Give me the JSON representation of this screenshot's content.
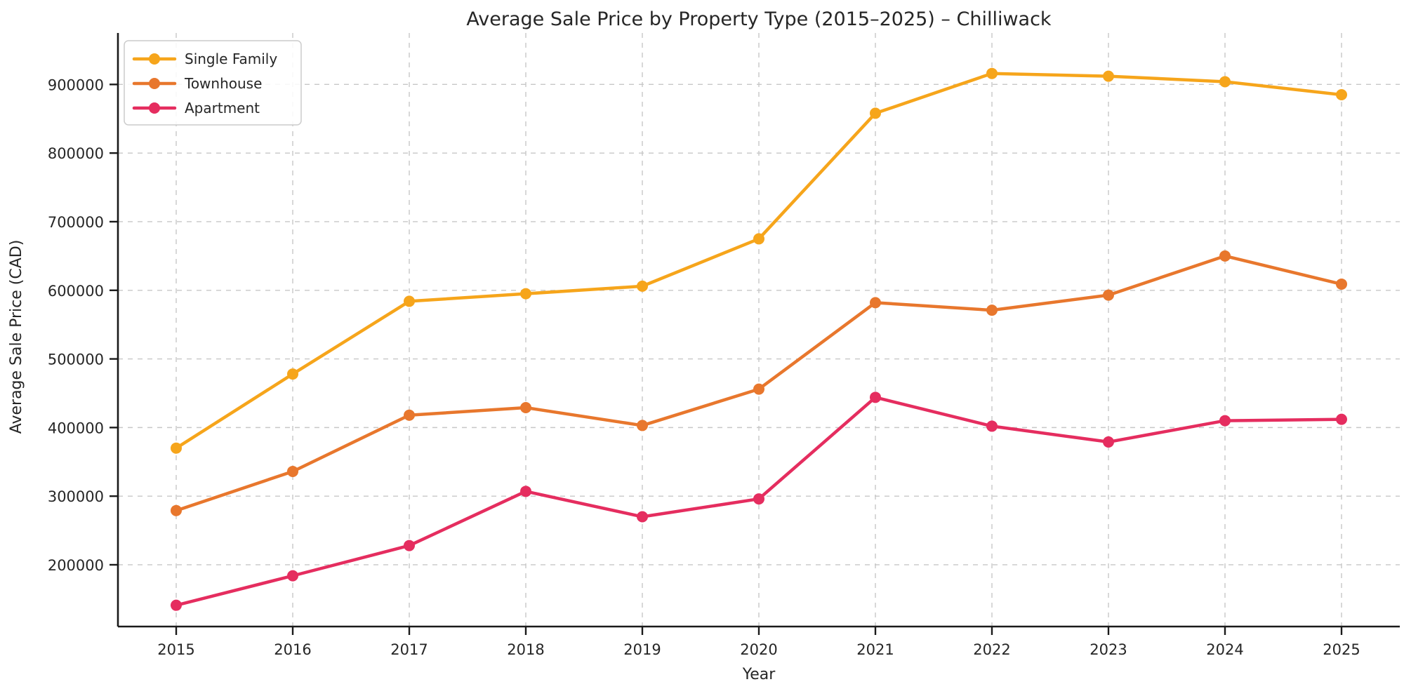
{
  "chart_data": {
    "type": "line",
    "title": "Average Sale Price by Property Type (2015–2025) – Chilliwack",
    "xlabel": "Year",
    "ylabel": "Average Sale Price (CAD)",
    "categories": [
      2015,
      2016,
      2017,
      2018,
      2019,
      2020,
      2021,
      2022,
      2023,
      2024,
      2025
    ],
    "series": [
      {
        "name": "Single Family",
        "color": "#F6A51B",
        "values": [
          370000,
          478000,
          584000,
          595000,
          606000,
          675000,
          858000,
          916000,
          912000,
          904000,
          885000
        ]
      },
      {
        "name": "Townhouse",
        "color": "#E8772D",
        "values": [
          279000,
          336000,
          418000,
          429000,
          403000,
          456000,
          582000,
          571000,
          593000,
          650000,
          609000
        ]
      },
      {
        "name": "Apartment",
        "color": "#E52D5F",
        "values": [
          141000,
          184000,
          228000,
          307000,
          270000,
          296000,
          444000,
          402000,
          379000,
          410000,
          412000
        ]
      }
    ],
    "yticks": [
      200000,
      300000,
      400000,
      500000,
      600000,
      700000,
      800000,
      900000
    ],
    "ylim": [
      110000,
      975000
    ],
    "grid": true,
    "legend_position": "upper left"
  },
  "colors": {
    "background": "#ffffff",
    "grid": "#c7c7c7",
    "axis": "#1a1a1a",
    "text": "#262626",
    "legend_border": "#cccccc",
    "legend_fill": "#ffffff"
  }
}
